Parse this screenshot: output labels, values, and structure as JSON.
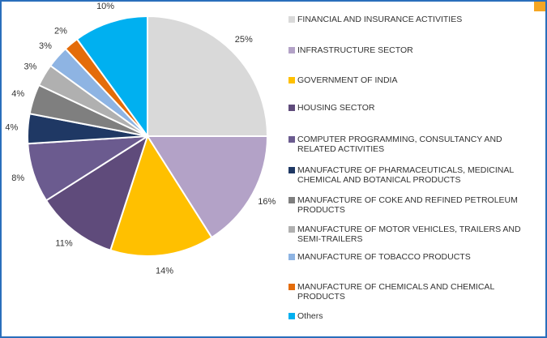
{
  "chart_data": {
    "type": "pie",
    "categories": [
      "FINANCIAL AND INSURANCE ACTIVITIES",
      "INFRASTRUCTURE SECTOR",
      "GOVERNMENT OF INDIA",
      "HOUSING SECTOR",
      "COMPUTER PROGRAMMING, CONSULTANCY AND RELATED ACTIVITIES",
      "MANUFACTURE OF PHARMACEUTICALS, MEDICINAL CHEMICAL AND BOTANICAL PRODUCTS",
      "MANUFACTURE OF COKE AND REFINED PETROLEUM PRODUCTS",
      "MANUFACTURE OF MOTOR VEHICLES, TRAILERS AND SEMI-TRAILERS",
      "MANUFACTURE OF TOBACCO PRODUCTS",
      "MANUFACTURE OF CHEMICALS AND CHEMICAL PRODUCTS",
      "Others"
    ],
    "values": [
      25,
      16,
      14,
      11,
      8,
      4,
      4,
      3,
      3,
      2,
      10
    ],
    "value_labels": [
      "25%",
      "16%",
      "14%",
      "11%",
      "8%",
      "4%",
      "4%",
      "3%",
      "3%",
      "2%",
      "10%"
    ],
    "colors": [
      "#d9d9d9",
      "#b3a2c7",
      "#ffc000",
      "#5f4b7b",
      "#6b5b8f",
      "#1f3864",
      "#7f7f7f",
      "#b0b0b0",
      "#8eb4e3",
      "#e46c0a",
      "#00b0f0"
    ],
    "legend": "right"
  }
}
